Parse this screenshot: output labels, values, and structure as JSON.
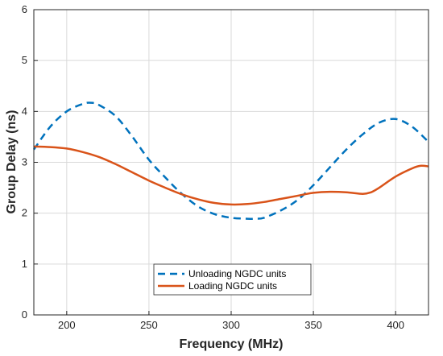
{
  "chart_data": {
    "type": "line",
    "title": "",
    "xlabel": "Frequency (MHz)",
    "ylabel": "Group Delay (ns)",
    "xlim": [
      180,
      420
    ],
    "ylim": [
      0,
      6
    ],
    "x_ticks": [
      "200",
      "250",
      "300",
      "350",
      "400"
    ],
    "y_ticks": [
      "0",
      "1",
      "2",
      "3",
      "4",
      "5",
      "6"
    ],
    "grid": true,
    "legend_position": "bottom-center",
    "series": [
      {
        "name": "Unloading NGDC units",
        "style": "dashed",
        "color": "#0072BD",
        "x": [
          180,
          190,
          200,
          210,
          215,
          220,
          230,
          240,
          250,
          260,
          270,
          280,
          290,
          300,
          310,
          315,
          320,
          330,
          340,
          350,
          360,
          370,
          380,
          390,
          400,
          410,
          420
        ],
        "y": [
          3.25,
          3.7,
          4.0,
          4.15,
          4.17,
          4.12,
          3.9,
          3.5,
          3.05,
          2.7,
          2.38,
          2.13,
          1.98,
          1.91,
          1.89,
          1.89,
          1.91,
          2.05,
          2.25,
          2.55,
          2.9,
          3.25,
          3.55,
          3.78,
          3.85,
          3.7,
          3.4
        ]
      },
      {
        "name": "Loading NGDC units",
        "style": "solid",
        "color": "#D95319",
        "x": [
          180,
          190,
          200,
          210,
          220,
          230,
          240,
          250,
          260,
          270,
          280,
          290,
          300,
          310,
          320,
          330,
          340,
          350,
          360,
          370,
          380,
          385,
          390,
          400,
          410,
          415,
          420
        ],
        "y": [
          3.31,
          3.3,
          3.27,
          3.2,
          3.1,
          2.96,
          2.8,
          2.64,
          2.5,
          2.37,
          2.27,
          2.2,
          2.17,
          2.18,
          2.22,
          2.28,
          2.34,
          2.4,
          2.42,
          2.41,
          2.38,
          2.41,
          2.5,
          2.72,
          2.88,
          2.93,
          2.92
        ]
      }
    ]
  }
}
